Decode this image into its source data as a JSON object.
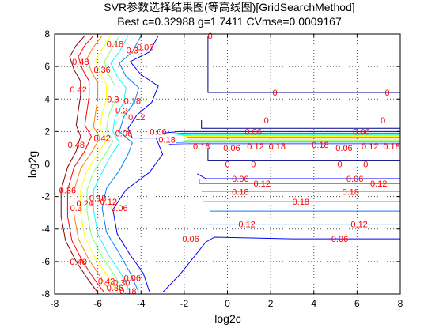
{
  "chart_data": {
    "type": "contour",
    "title": "SVR参数选择结果图(等高线图)[GridSearchMethod]",
    "subtitle": "Best c=0.32988 g=1.7411 CVmse=0.0009167",
    "xlabel": "log2c",
    "ylabel": "log2g",
    "xlim": [
      -8,
      8
    ],
    "ylim": [
      -8,
      8
    ],
    "xticks": [
      -8,
      -6,
      -4,
      -2,
      0,
      2,
      4,
      6,
      8
    ],
    "yticks": [
      -8,
      -6,
      -4,
      -2,
      0,
      2,
      4,
      6,
      8
    ],
    "grid": true,
    "label_color": "#ff0000",
    "levels": [
      {
        "value": 0,
        "color": "#00008f"
      },
      {
        "value": 0.06,
        "color": "#0000ff"
      },
      {
        "value": 0.12,
        "color": "#0080ff"
      },
      {
        "value": 0.18,
        "color": "#00ffff"
      },
      {
        "value": 0.24,
        "color": "#80ff80"
      },
      {
        "value": 0.3,
        "color": "#ffff00"
      },
      {
        "value": 0.36,
        "color": "#ff8000"
      },
      {
        "value": 0.42,
        "color": "#ff0000"
      },
      {
        "value": 0.48,
        "color": "#800000"
      }
    ],
    "contours": [
      {
        "level": 0.06,
        "points": [
          [
            -3.2,
            7.9
          ],
          [
            -3.6,
            6.9
          ],
          [
            -4.5,
            6.3
          ],
          [
            -4.0,
            5.5
          ],
          [
            -3.2,
            4.8
          ],
          [
            -3.5,
            3.8
          ],
          [
            -4.2,
            3.0
          ],
          [
            -4.6,
            2.2
          ],
          [
            -4.4,
            1.6
          ],
          [
            -3.3,
            1.6
          ],
          [
            -3.0,
            0.6
          ],
          [
            -3.6,
            -0.5
          ],
          [
            -4.7,
            -1.6
          ],
          [
            -5.3,
            -2.8
          ],
          [
            -5.1,
            -4.3
          ],
          [
            -4.5,
            -5.6
          ],
          [
            -3.9,
            -6.7
          ],
          [
            -3.6,
            -7.9
          ]
        ]
      },
      {
        "level": 0.12,
        "points": [
          [
            -4.0,
            7.9
          ],
          [
            -4.4,
            6.9
          ],
          [
            -5.0,
            6.2
          ],
          [
            -4.7,
            5.4
          ],
          [
            -4.1,
            4.7
          ],
          [
            -4.3,
            3.8
          ],
          [
            -4.8,
            2.9
          ],
          [
            -5.0,
            2.0
          ],
          [
            -4.4,
            1.3
          ],
          [
            -4.6,
            0.6
          ],
          [
            -5.0,
            -0.4
          ],
          [
            -5.6,
            -1.5
          ],
          [
            -5.8,
            -2.7
          ],
          [
            -5.6,
            -4.2
          ],
          [
            -5.0,
            -5.5
          ],
          [
            -4.5,
            -6.7
          ],
          [
            -4.1,
            -7.9
          ]
        ]
      },
      {
        "level": 0.18,
        "points": [
          [
            -4.6,
            7.9
          ],
          [
            -5.0,
            6.9
          ],
          [
            -5.4,
            6.2
          ],
          [
            -5.1,
            5.4
          ],
          [
            -4.7,
            4.7
          ],
          [
            -4.8,
            3.8
          ],
          [
            -5.2,
            2.9
          ],
          [
            -5.3,
            2.0
          ],
          [
            -5.0,
            1.3
          ],
          [
            -5.4,
            0.5
          ],
          [
            -5.8,
            -0.5
          ],
          [
            -6.2,
            -1.6
          ],
          [
            -6.2,
            -2.8
          ],
          [
            -6.0,
            -4.3
          ],
          [
            -5.5,
            -5.6
          ],
          [
            -4.9,
            -6.8
          ],
          [
            -4.5,
            -7.9
          ]
        ]
      },
      {
        "level": 0.24,
        "points": [
          [
            -5.0,
            7.9
          ],
          [
            -5.4,
            7.0
          ],
          [
            -5.7,
            6.3
          ],
          [
            -5.5,
            5.5
          ],
          [
            -5.2,
            4.8
          ],
          [
            -5.2,
            3.9
          ],
          [
            -5.5,
            3.0
          ],
          [
            -5.6,
            2.1
          ],
          [
            -5.3,
            1.4
          ],
          [
            -5.7,
            0.5
          ],
          [
            -6.2,
            -0.5
          ],
          [
            -6.5,
            -1.6
          ],
          [
            -6.5,
            -2.9
          ],
          [
            -6.3,
            -4.4
          ],
          [
            -5.8,
            -5.7
          ],
          [
            -5.2,
            -6.9
          ],
          [
            -4.8,
            -7.9
          ]
        ]
      },
      {
        "level": 0.3,
        "points": [
          [
            -5.4,
            7.9
          ],
          [
            -5.8,
            7.1
          ],
          [
            -6.1,
            6.4
          ],
          [
            -5.9,
            5.6
          ],
          [
            -5.6,
            4.9
          ],
          [
            -5.6,
            4.0
          ],
          [
            -5.8,
            3.1
          ],
          [
            -5.9,
            2.2
          ],
          [
            -5.6,
            1.5
          ],
          [
            -6.0,
            0.6
          ],
          [
            -6.5,
            -0.4
          ],
          [
            -6.8,
            -1.6
          ],
          [
            -6.8,
            -3.0
          ],
          [
            -6.6,
            -4.5
          ],
          [
            -6.1,
            -5.8
          ],
          [
            -5.5,
            -7.0
          ],
          [
            -5.1,
            -7.9
          ]
        ]
      },
      {
        "level": 0.36,
        "points": [
          [
            -5.8,
            7.9
          ],
          [
            -6.2,
            7.2
          ],
          [
            -6.5,
            6.5
          ],
          [
            -6.3,
            5.7
          ],
          [
            -6.0,
            5.0
          ],
          [
            -6.0,
            4.1
          ],
          [
            -6.1,
            3.2
          ],
          [
            -6.2,
            2.3
          ],
          [
            -5.9,
            1.6
          ],
          [
            -6.3,
            0.7
          ],
          [
            -6.8,
            -0.3
          ],
          [
            -7.1,
            -1.6
          ],
          [
            -7.1,
            -3.1
          ],
          [
            -6.9,
            -4.6
          ],
          [
            -6.4,
            -5.9
          ],
          [
            -5.8,
            -7.1
          ],
          [
            -5.4,
            -7.9
          ]
        ]
      },
      {
        "level": 0.42,
        "points": [
          [
            -6.2,
            7.9
          ],
          [
            -6.6,
            7.3
          ],
          [
            -6.9,
            6.6
          ],
          [
            -6.7,
            5.8
          ],
          [
            -6.4,
            5.1
          ],
          [
            -6.4,
            4.2
          ],
          [
            -6.5,
            3.3
          ],
          [
            -6.6,
            2.4
          ],
          [
            -6.3,
            1.7
          ],
          [
            -6.6,
            0.8
          ],
          [
            -7.1,
            -0.2
          ],
          [
            -7.4,
            -1.6
          ],
          [
            -7.4,
            -3.2
          ],
          [
            -7.2,
            -4.7
          ],
          [
            -6.7,
            -6.0
          ],
          [
            -6.1,
            -7.2
          ],
          [
            -5.7,
            -7.9
          ]
        ]
      },
      {
        "level": 0.48,
        "points": [
          [
            -6.6,
            7.9
          ],
          [
            -7.0,
            7.3
          ],
          [
            -7.3,
            6.6
          ],
          [
            -7.1,
            5.8
          ],
          [
            -6.8,
            5.1
          ],
          [
            -6.8,
            4.2
          ],
          [
            -6.9,
            3.3
          ],
          [
            -7.0,
            2.4
          ],
          [
            -6.8,
            1.7
          ],
          [
            -7.0,
            0.8
          ],
          [
            -7.4,
            -0.2
          ],
          [
            -7.7,
            -1.6
          ],
          [
            -7.7,
            -3.2
          ],
          [
            -7.5,
            -4.7
          ],
          [
            -7.0,
            -6.0
          ],
          [
            -6.4,
            -7.2
          ],
          [
            -6.0,
            -7.9
          ]
        ]
      },
      {
        "level": 0,
        "points": [
          [
            -0.9,
            7.9
          ],
          [
            -0.9,
            4.4
          ],
          [
            8,
            4.4
          ]
        ]
      },
      {
        "level": 0,
        "points": [
          [
            -0.9,
            1.0
          ],
          [
            -0.9,
            0.2
          ],
          [
            8,
            0.2
          ]
        ]
      },
      {
        "level": 0.06,
        "points": [
          [
            -3.0,
            -7.9
          ],
          [
            -2.2,
            -6.8
          ],
          [
            -1.6,
            -5.8
          ],
          [
            -1.0,
            -4.8
          ],
          [
            -0.6,
            -4.5
          ],
          [
            3,
            -4.6
          ],
          [
            6,
            -4.6
          ],
          [
            8,
            -4.6
          ]
        ]
      },
      {
        "level": 0.06,
        "points": [
          [
            -1.4,
            -0.6
          ],
          [
            -1.0,
            -0.9
          ],
          [
            8,
            -0.9
          ]
        ]
      },
      {
        "level": 0,
        "points": [
          [
            -1.2,
            2.7
          ],
          [
            -1.2,
            2.2
          ],
          [
            8,
            2.2
          ]
        ]
      },
      {
        "level": 0.06,
        "points": [
          [
            -3.0,
            1.9
          ],
          [
            -2.2,
            2.0
          ],
          [
            8,
            2.0
          ]
        ]
      },
      {
        "level": 0.12,
        "points": [
          [
            -2.6,
            1.85
          ],
          [
            -2.0,
            1.9
          ],
          [
            8,
            1.9
          ]
        ]
      },
      {
        "level": 0.18,
        "points": [
          [
            -2.3,
            1.8
          ],
          [
            -1.5,
            1.82
          ],
          [
            8,
            1.82
          ]
        ]
      },
      {
        "level": 0.24,
        "points": [
          [
            -2.1,
            1.75
          ],
          [
            -1.3,
            1.76
          ],
          [
            8,
            1.76
          ]
        ]
      },
      {
        "level": 0.3,
        "points": [
          [
            -2.0,
            1.7
          ],
          [
            -1.2,
            1.7
          ],
          [
            8,
            1.7
          ]
        ]
      },
      {
        "level": 0.36,
        "points": [
          [
            -1.9,
            1.65
          ],
          [
            -1.1,
            1.65
          ],
          [
            8,
            1.65
          ]
        ]
      },
      {
        "level": 0.42,
        "points": [
          [
            -1.8,
            1.6
          ],
          [
            -1.0,
            1.6
          ],
          [
            8,
            1.6
          ]
        ]
      },
      {
        "level": 0.3,
        "points": [
          [
            -1.9,
            1.5
          ],
          [
            -1.2,
            1.5
          ],
          [
            8,
            1.5
          ]
        ]
      },
      {
        "level": 0.24,
        "points": [
          [
            -2.0,
            1.45
          ],
          [
            -1.3,
            1.44
          ],
          [
            8,
            1.44
          ]
        ]
      },
      {
        "level": 0.18,
        "points": [
          [
            -2.1,
            1.38
          ],
          [
            -1.5,
            1.36
          ],
          [
            8,
            1.36
          ]
        ]
      },
      {
        "level": 0.12,
        "points": [
          [
            -2.4,
            1.3
          ],
          [
            -1.7,
            1.28
          ],
          [
            8,
            1.28
          ]
        ]
      },
      {
        "level": 0.06,
        "points": [
          [
            -2.7,
            1.2
          ],
          [
            -2.0,
            1.18
          ],
          [
            8,
            1.18
          ]
        ]
      },
      {
        "level": 0.12,
        "points": [
          [
            -1.3,
            -0.9
          ],
          [
            -1.3,
            -1.2
          ],
          [
            8,
            -1.2
          ]
        ]
      },
      {
        "level": 0.18,
        "points": [
          [
            -1.2,
            -1.7
          ],
          [
            8,
            -1.7
          ]
        ]
      },
      {
        "level": 0.18,
        "points": [
          [
            -1.1,
            -2.3
          ],
          [
            8,
            -2.3
          ]
        ]
      },
      {
        "level": 0.12,
        "points": [
          [
            -1.0,
            -3.7
          ],
          [
            8,
            -3.7
          ]
        ]
      },
      {
        "level": 0.12,
        "points": [
          [
            -0.8,
            -2.9
          ],
          [
            8,
            -2.9
          ]
        ]
      }
    ],
    "labels": [
      {
        "text": "0.48",
        "x": -6.8,
        "y": 6.3
      },
      {
        "text": "0.42",
        "x": -6.9,
        "y": 4.6
      },
      {
        "text": "0.36",
        "x": -5.8,
        "y": 5.8
      },
      {
        "text": "0.3",
        "x": -4.4,
        "y": 7.0
      },
      {
        "text": "0.18",
        "x": -5.2,
        "y": 7.4
      },
      {
        "text": "0.06",
        "x": -3.8,
        "y": 7.2
      },
      {
        "text": "0.3",
        "x": -5.3,
        "y": 4.0
      },
      {
        "text": "0.2",
        "x": -4.9,
        "y": 3.3
      },
      {
        "text": "0.18",
        "x": -4.4,
        "y": 3.9
      },
      {
        "text": "0.12",
        "x": -4.2,
        "y": 2.9
      },
      {
        "text": "0.06",
        "x": -4.8,
        "y": 1.9
      },
      {
        "text": "0.42",
        "x": -5.8,
        "y": 1.6
      },
      {
        "text": "0.48",
        "x": -7.0,
        "y": 1.2
      },
      {
        "text": "0.36",
        "x": -7.4,
        "y": -1.6
      },
      {
        "text": "0.3",
        "x": -7.0,
        "y": -2.7
      },
      {
        "text": "0.24",
        "x": -6.6,
        "y": -2.4
      },
      {
        "text": "0.18",
        "x": -6.0,
        "y": -2.1
      },
      {
        "text": "0.12",
        "x": -5.5,
        "y": -2.3
      },
      {
        "text": "0.06",
        "x": -5.0,
        "y": -2.7
      },
      {
        "text": "0.48",
        "x": -6.9,
        "y": -6.0
      },
      {
        "text": "0.42",
        "x": -5.6,
        "y": -7.2
      },
      {
        "text": "0.36",
        "x": -5.2,
        "y": -7.6
      },
      {
        "text": "0.30",
        "x": -4.9,
        "y": -7.3
      },
      {
        "text": "0.18",
        "x": -4.6,
        "y": -7.8
      },
      {
        "text": "0.06",
        "x": -4.4,
        "y": -7.0
      },
      {
        "text": "0.06",
        "x": -3.2,
        "y": 2.0
      },
      {
        "text": "0.18",
        "x": -2.8,
        "y": 1.5
      },
      {
        "text": "0",
        "x": -0.8,
        "y": 7.9
      },
      {
        "text": "0",
        "x": 2.2,
        "y": 4.4
      },
      {
        "text": "0",
        "x": 7.4,
        "y": 4.4
      },
      {
        "text": "0",
        "x": 1.8,
        "y": 2.7
      },
      {
        "text": "0",
        "x": 7.2,
        "y": 2.7
      },
      {
        "text": "0.06",
        "x": 1.2,
        "y": 2.0
      },
      {
        "text": "0.06",
        "x": 6.2,
        "y": 2.0
      },
      {
        "text": "0.18",
        "x": -1.2,
        "y": 1.1
      },
      {
        "text": "0.06",
        "x": 0.2,
        "y": 1.0
      },
      {
        "text": "0.12",
        "x": 1.3,
        "y": 1.1
      },
      {
        "text": "0.18",
        "x": 2.3,
        "y": 1.1
      },
      {
        "text": "0.18",
        "x": 4.3,
        "y": 1.2
      },
      {
        "text": "0.06",
        "x": 5.4,
        "y": 1.0
      },
      {
        "text": "0.12",
        "x": 6.6,
        "y": 1.1
      },
      {
        "text": "0.18",
        "x": 7.6,
        "y": 1.1
      },
      {
        "text": "0",
        "x": 0.0,
        "y": 0.0
      },
      {
        "text": "0",
        "x": 1.2,
        "y": 0.0
      },
      {
        "text": "0",
        "x": 5.2,
        "y": 0.0
      },
      {
        "text": "0",
        "x": 6.4,
        "y": 0.0
      },
      {
        "text": "0.06",
        "x": 0.6,
        "y": -0.9
      },
      {
        "text": "0.12",
        "x": 1.6,
        "y": -1.2
      },
      {
        "text": "0.06",
        "x": 5.9,
        "y": -0.9
      },
      {
        "text": "0.12",
        "x": 7.0,
        "y": -1.2
      },
      {
        "text": "0.18",
        "x": 0.6,
        "y": -1.7
      },
      {
        "text": "0.18",
        "x": 5.7,
        "y": -1.7
      },
      {
        "text": "0.18",
        "x": 3.4,
        "y": -2.3
      },
      {
        "text": "0.12",
        "x": 0.9,
        "y": -3.7
      },
      {
        "text": "0.12",
        "x": 6.1,
        "y": -3.7
      },
      {
        "text": "0.06",
        "x": -1.7,
        "y": -4.6
      },
      {
        "text": "0.06",
        "x": 5.2,
        "y": -4.6
      }
    ]
  }
}
